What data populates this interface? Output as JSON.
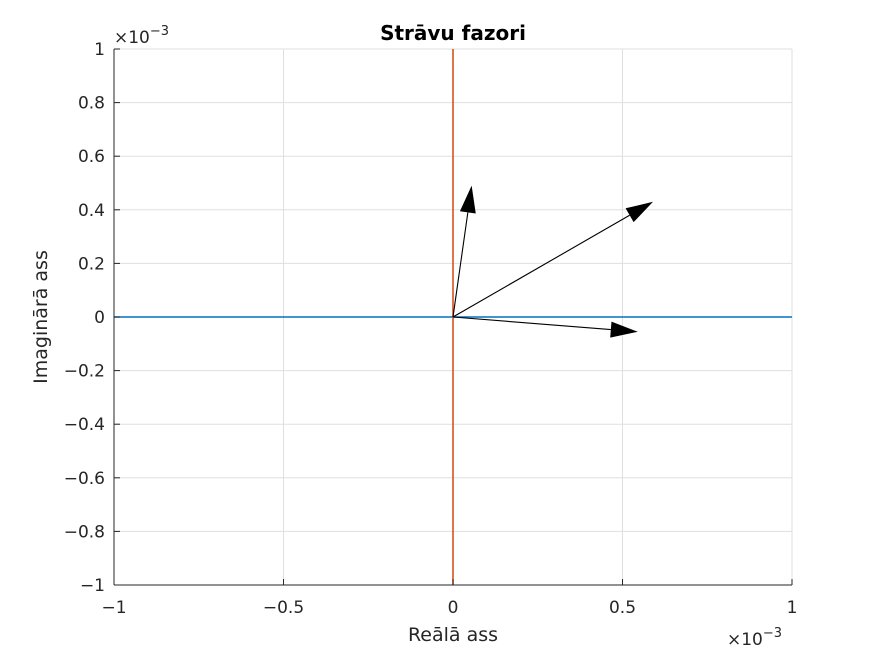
{
  "chart_data": {
    "type": "line",
    "title": "Strāvu fazori",
    "xlabel": "Reālā ass",
    "ylabel": "Imaginārā ass",
    "xlim": [
      -0.001,
      0.001
    ],
    "ylim": [
      -0.001,
      0.001
    ],
    "xticks": [
      -0.001,
      -0.0005,
      0,
      0.0005,
      0.001
    ],
    "xtick_labels": [
      "−1",
      "−0.5",
      "0",
      "0.5",
      "1"
    ],
    "yticks": [
      -0.001,
      -0.0008,
      -0.0006,
      -0.0004,
      -0.0002,
      0,
      0.0002,
      0.0004,
      0.0006,
      0.0008,
      0.001
    ],
    "ytick_labels": [
      "−1",
      "−0.8",
      "−0.6",
      "−0.4",
      "−0.2",
      "0",
      "0.2",
      "0.4",
      "0.6",
      "0.8",
      "1"
    ],
    "x_exponent": "×10",
    "x_exponent_power": "−3",
    "y_exponent": "×10",
    "y_exponent_power": "−3",
    "grid": true,
    "reference_lines": [
      {
        "orientation": "horizontal",
        "value": 0,
        "color": "#0072BD"
      },
      {
        "orientation": "vertical",
        "value": 0,
        "color": "#D95319"
      }
    ],
    "phasors": [
      {
        "x0": 0,
        "y0": 0,
        "x1": 5.5e-05,
        "y1": 0.00049
      },
      {
        "x0": 0,
        "y0": 0,
        "x1": 0.00059,
        "y1": 0.00043
      },
      {
        "x0": 0,
        "y0": 0,
        "x1": 0.000545,
        "y1": -5.5e-05
      }
    ],
    "arrow_color": "#000000"
  }
}
